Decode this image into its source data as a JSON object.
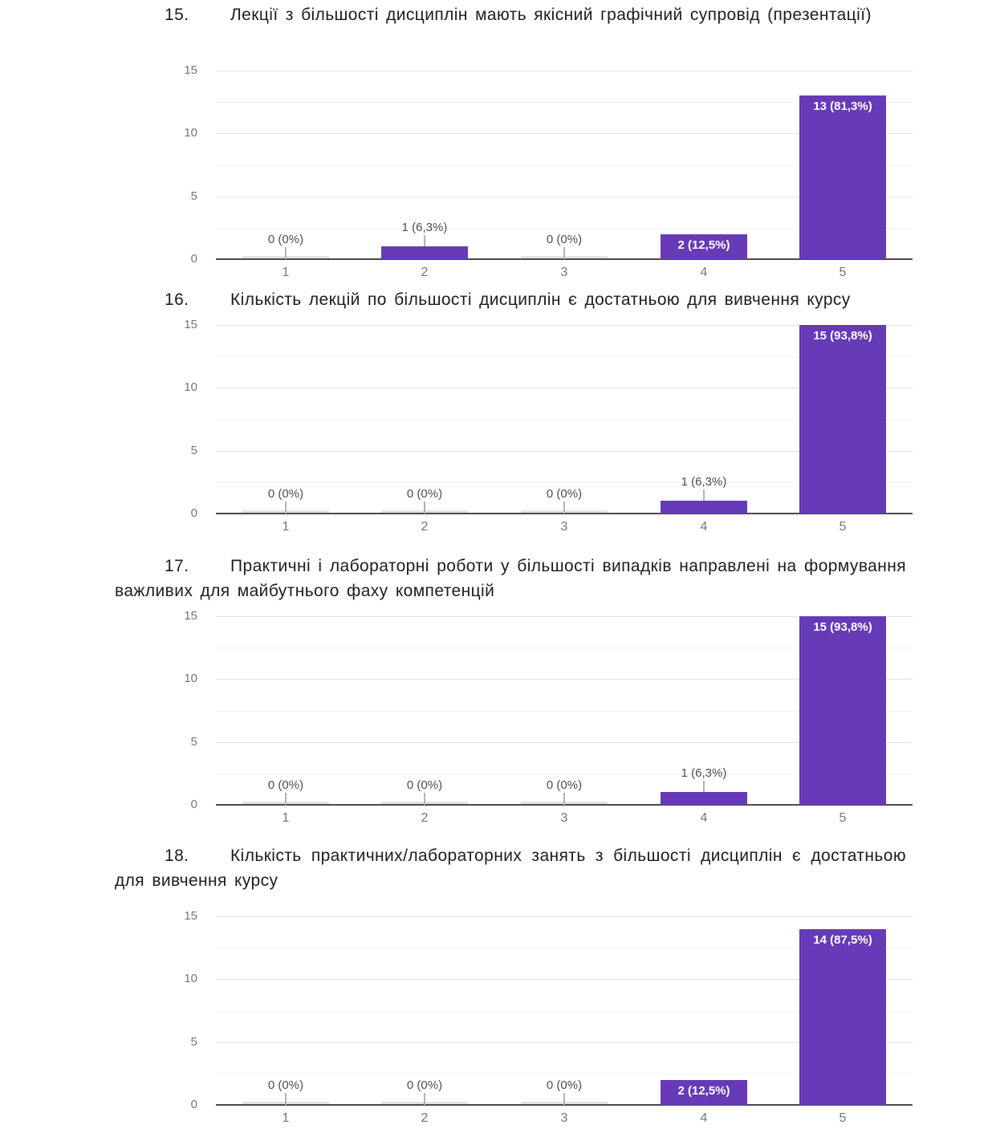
{
  "document": {
    "language": "uk",
    "background_color": "#ffffff",
    "text_color": "#1d1d1d"
  },
  "questions": [
    {
      "number": "15.",
      "text": "Лекції з більшості дисциплін мають якісний графічний супровід (презентації)"
    },
    {
      "number": "16.",
      "text": "Кількість лекцій по більшості дисциплін є достатньою для вивчення курсу"
    },
    {
      "number": "17.",
      "text": "Практичні і лабораторні роботи у більшості випадків направлені на формування важливих для майбутнього фаху компетенцій"
    },
    {
      "number": "18.",
      "text": "Кількість практичних/лабораторних занять з більшості дисциплін є достатньою для вивчення курсу"
    }
  ],
  "chart_data": [
    {
      "type": "bar",
      "title": "Лекції з більшості дисциплін мають якісний графічний супровід (презентації)",
      "categories": [
        "1",
        "2",
        "3",
        "4",
        "5"
      ],
      "values": [
        0,
        1,
        0,
        2,
        13
      ],
      "labels": [
        "0 (0%)",
        "1 (6,3%)",
        "0 (0%)",
        "2 (12,5%)",
        "13 (81,3%)"
      ],
      "xlabel": "",
      "ylabel": "",
      "ylim": [
        0,
        15
      ],
      "yticks": [
        0,
        5,
        10,
        15
      ],
      "grid": true,
      "legend": "none",
      "bar_color": "#673ab7",
      "zero_bar_color": "#e3e3e3",
      "axis_text_color": "#757575"
    },
    {
      "type": "bar",
      "title": "Кількість лекцій по більшості дисциплін є достатньою для вивчення курсу",
      "categories": [
        "1",
        "2",
        "3",
        "4",
        "5"
      ],
      "values": [
        0,
        0,
        0,
        1,
        15
      ],
      "labels": [
        "0 (0%)",
        "0 (0%)",
        "0 (0%)",
        "1 (6,3%)",
        "15 (93,8%)"
      ],
      "xlabel": "",
      "ylabel": "",
      "ylim": [
        0,
        15
      ],
      "yticks": [
        0,
        5,
        10,
        15
      ],
      "grid": true,
      "legend": "none",
      "bar_color": "#673ab7",
      "zero_bar_color": "#e3e3e3",
      "axis_text_color": "#757575"
    },
    {
      "type": "bar",
      "title": "Практичні і лабораторні роботи у більшості випадків направлені на формування важливих для майбутнього фаху компетенцій",
      "categories": [
        "1",
        "2",
        "3",
        "4",
        "5"
      ],
      "values": [
        0,
        0,
        0,
        1,
        15
      ],
      "labels": [
        "0 (0%)",
        "0 (0%)",
        "0 (0%)",
        "1 (6,3%)",
        "15 (93,8%)"
      ],
      "xlabel": "",
      "ylabel": "",
      "ylim": [
        0,
        15
      ],
      "yticks": [
        0,
        5,
        10,
        15
      ],
      "grid": true,
      "legend": "none",
      "bar_color": "#673ab7",
      "zero_bar_color": "#e3e3e3",
      "axis_text_color": "#757575"
    },
    {
      "type": "bar",
      "title": "Кількість практичних/лабораторних занять з більшості дисциплін є достатньою для вивчення курсу",
      "categories": [
        "1",
        "2",
        "3",
        "4",
        "5"
      ],
      "values": [
        0,
        0,
        0,
        2,
        14
      ],
      "labels": [
        "0 (0%)",
        "0 (0%)",
        "0 (0%)",
        "2 (12,5%)",
        "14 (87,5%)"
      ],
      "xlabel": "",
      "ylabel": "",
      "ylim": [
        0,
        15
      ],
      "yticks": [
        0,
        5,
        10,
        15
      ],
      "grid": true,
      "legend": "none",
      "bar_color": "#673ab7",
      "zero_bar_color": "#e3e3e3",
      "axis_text_color": "#757575"
    }
  ]
}
